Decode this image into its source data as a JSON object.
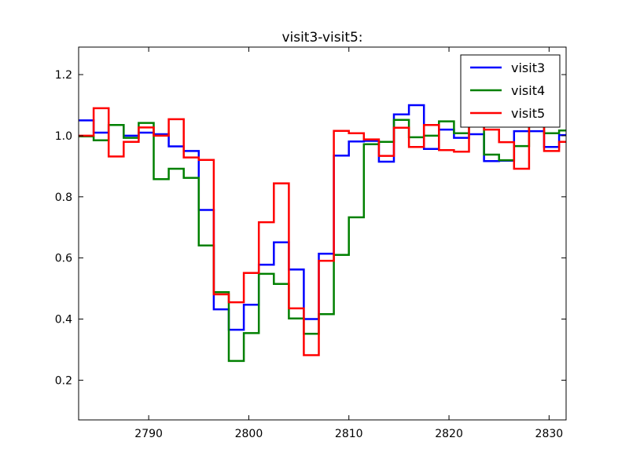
{
  "chart_data": {
    "type": "line",
    "drawstyle": "steps-post",
    "title": "visit3-visit5:",
    "xlabel": "",
    "ylabel": "",
    "xlim": [
      2783.0,
      2831.7
    ],
    "ylim": [
      0.07,
      1.29
    ],
    "xticks": [
      2790,
      2800,
      2810,
      2820,
      2830
    ],
    "yticks": [
      0.2,
      0.4,
      0.6,
      0.8,
      1.0,
      1.2
    ],
    "ytick_labels": [
      "0.2",
      "0.4",
      "0.6",
      "0.8",
      "1.0",
      "1.2"
    ],
    "grid": false,
    "legend_position": "top-right",
    "x": [
      2783.0,
      2784.5,
      2786.0,
      2787.5,
      2789.0,
      2790.5,
      2792.0,
      2793.5,
      2795.0,
      2796.5,
      2798.0,
      2799.5,
      2801.0,
      2802.5,
      2804.0,
      2805.5,
      2807.0,
      2808.5,
      2810.0,
      2811.5,
      2813.0,
      2814.5,
      2816.0,
      2817.5,
      2819.0,
      2820.5,
      2822.0,
      2823.5,
      2825.0,
      2826.5,
      2828.0,
      2829.5,
      2831.0
    ],
    "series": [
      {
        "name": "visit3",
        "color": "#0000ff",
        "values": [
          1.05,
          1.01,
          1.035,
          1.0,
          1.01,
          1.005,
          0.965,
          0.95,
          0.757,
          0.432,
          0.365,
          0.447,
          0.578,
          0.651,
          0.562,
          0.4,
          0.614,
          0.935,
          0.981,
          0.983,
          0.915,
          1.07,
          1.1,
          0.957,
          1.02,
          0.993,
          1.005,
          0.917,
          0.918,
          1.015,
          1.015,
          0.963,
          1.002
        ]
      },
      {
        "name": "visit4",
        "color": "#008000",
        "values": [
          0.998,
          0.985,
          1.035,
          0.993,
          1.042,
          0.858,
          0.892,
          0.862,
          0.641,
          0.488,
          0.263,
          0.354,
          0.548,
          0.515,
          0.402,
          0.352,
          0.416,
          0.61,
          0.733,
          0.972,
          0.98,
          1.052,
          0.995,
          1.0,
          1.047,
          1.008,
          1.1,
          0.938,
          0.92,
          0.966,
          1.04,
          1.008,
          1.017
        ]
      },
      {
        "name": "visit5",
        "color": "#ff0000",
        "values": [
          1.0,
          1.09,
          0.932,
          0.98,
          1.027,
          1.0,
          1.054,
          0.929,
          0.921,
          0.481,
          0.455,
          0.551,
          0.717,
          0.844,
          0.435,
          0.282,
          0.591,
          1.016,
          1.008,
          0.988,
          0.934,
          1.026,
          0.963,
          1.035,
          0.953,
          0.948,
          1.04,
          1.02,
          0.979,
          0.892,
          1.035,
          0.95,
          0.98
        ]
      }
    ]
  }
}
